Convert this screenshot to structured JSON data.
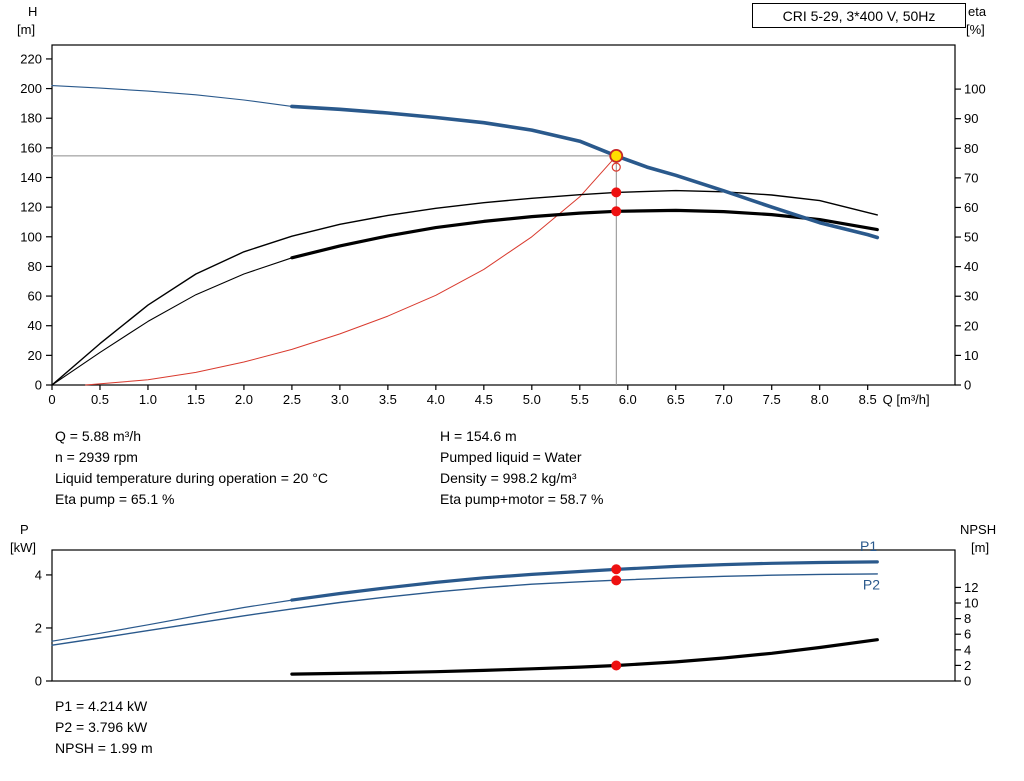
{
  "title_box": "CRI 5-29, 3*400 V, 50Hz",
  "info_top_left": [
    "Q = 5.88 m³/h",
    "n = 2939 rpm",
    "Liquid temperature during operation = 20 °C",
    "Eta pump = 65.1 %"
  ],
  "info_top_right": [
    "H = 154.6 m",
    "Pumped liquid = Water",
    "Density = 998.2 kg/m³",
    "Eta pump+motor = 58.7 %"
  ],
  "info_bottom": [
    "P1 = 4.214 kW",
    "P2 = 3.796 kW",
    "NPSH = 1.99 m"
  ],
  "colors": {
    "curve_blue": "#2A598C",
    "curve_red": "#D93A2E",
    "dot_red": "#EE1111",
    "target_fill": "#FFDE00",
    "target_ring": "#C62828",
    "crosshair": "#8C8C8C",
    "axis": "#000000"
  },
  "chart_data": [
    {
      "type": "line",
      "title": "CRI 5-29, 3*400 V, 50Hz",
      "x_axis": {
        "label": "Q [m³/h]",
        "min": 0,
        "max": 9.41,
        "ticks": [
          0,
          0.5,
          1,
          1.5,
          2,
          2.5,
          3,
          3.5,
          4,
          4.5,
          5,
          5.5,
          6,
          6.5,
          7,
          7.5,
          8,
          8.5
        ],
        "tick_labels": [
          "0",
          "0.5",
          "1.0",
          "1.5",
          "2.0",
          "2.5",
          "3.0",
          "3.5",
          "4.0",
          "4.5",
          "5.0",
          "5.5",
          "6.0",
          "6.5",
          "7.0",
          "7.5",
          "8.0",
          "8.5"
        ]
      },
      "y_left": {
        "title": [
          "H",
          "[m]"
        ],
        "min": 0,
        "max": 229.4,
        "ticks": [
          0,
          20,
          40,
          60,
          80,
          100,
          120,
          140,
          160,
          180,
          200,
          220
        ]
      },
      "y_right": {
        "title": [
          "eta",
          "[%]"
        ],
        "min": 0,
        "max": 114.9,
        "ticks": [
          0,
          10,
          20,
          30,
          40,
          50,
          60,
          70,
          80,
          90,
          100
        ]
      },
      "crosshair": {
        "q": 5.88,
        "h": 154.6
      },
      "series": [
        {
          "name": "system-curve",
          "axis": "left",
          "color": "#D93A2E",
          "parts": [
            {
              "w": 1,
              "pts": [
                [
                  0.35,
                  0
                ],
                [
                  1,
                  3.5
                ],
                [
                  1.5,
                  8.5
                ],
                [
                  2,
                  15.5
                ],
                [
                  2.5,
                  24
                ],
                [
                  3,
                  34.5
                ],
                [
                  3.5,
                  46.5
                ],
                [
                  4,
                  60.5
                ],
                [
                  4.5,
                  78
                ],
                [
                  5,
                  100
                ],
                [
                  5.5,
                  127
                ],
                [
                  5.88,
                  154.6
                ]
              ]
            }
          ]
        },
        {
          "name": "eta-pump-curve",
          "axis": "right",
          "color": "#000000",
          "parts": [
            {
              "w": 1.4,
              "pts": [
                [
                  0,
                  0
                ],
                [
                  0.5,
                  14
                ],
                [
                  1,
                  27
                ],
                [
                  1.5,
                  37.5
                ],
                [
                  2,
                  45
                ],
                [
                  2.5,
                  50.3
                ],
                [
                  3,
                  54.3
                ],
                [
                  3.5,
                  57.3
                ],
                [
                  4,
                  59.7
                ],
                [
                  4.5,
                  61.6
                ],
                [
                  5,
                  63.1
                ],
                [
                  5.5,
                  64.3
                ],
                [
                  5.88,
                  65.1
                ],
                [
                  6.5,
                  65.7
                ],
                [
                  7,
                  65.3
                ],
                [
                  7.5,
                  64.2
                ],
                [
                  8,
                  62.3
                ],
                [
                  8.6,
                  57.5
                ]
              ]
            }
          ]
        },
        {
          "name": "eta-pump-motor-curve",
          "axis": "right",
          "color": "#000000",
          "parts": [
            {
              "w": 1.1,
              "pts": [
                [
                  0,
                  0
                ],
                [
                  0.5,
                  11
                ],
                [
                  1,
                  21.5
                ],
                [
                  1.5,
                  30.5
                ],
                [
                  2,
                  37.5
                ],
                [
                  2.5,
                  43
                ]
              ]
            },
            {
              "w": 3.2,
              "pts": [
                [
                  2.5,
                  43
                ],
                [
                  3,
                  47
                ],
                [
                  3.5,
                  50.4
                ],
                [
                  4,
                  53.2
                ],
                [
                  4.5,
                  55.3
                ],
                [
                  5,
                  56.9
                ],
                [
                  5.5,
                  58.1
                ],
                [
                  5.88,
                  58.7
                ],
                [
                  6.5,
                  59
                ],
                [
                  7,
                  58.6
                ],
                [
                  7.5,
                  57.6
                ],
                [
                  8,
                  55.9
                ],
                [
                  8.6,
                  52.5
                ]
              ]
            }
          ]
        },
        {
          "name": "head-curve",
          "axis": "left",
          "color": "#2A598C",
          "parts": [
            {
              "w": 1.1,
              "pts": [
                [
                  0,
                  202
                ],
                [
                  0.5,
                  200.3
                ],
                [
                  1,
                  198.3
                ],
                [
                  1.5,
                  195.8
                ],
                [
                  2,
                  192.3
                ],
                [
                  2.5,
                  188
                ]
              ]
            },
            {
              "w": 3.6,
              "pts": [
                [
                  2.5,
                  188
                ],
                [
                  3,
                  186
                ],
                [
                  3.5,
                  183.5
                ],
                [
                  4,
                  180.5
                ],
                [
                  4.5,
                  177
                ],
                [
                  5,
                  172
                ],
                [
                  5.5,
                  164.5
                ],
                [
                  5.88,
                  154.6
                ],
                [
                  6.2,
                  147
                ],
                [
                  6.5,
                  141.5
                ],
                [
                  7,
                  131
                ],
                [
                  7.5,
                  120
                ],
                [
                  8,
                  109.5
                ],
                [
                  8.5,
                  101.5
                ],
                [
                  8.6,
                  99.5
                ]
              ]
            }
          ]
        }
      ],
      "markers": [
        {
          "axis": "left",
          "q": 5.88,
          "v": 147,
          "style": "open"
        },
        {
          "axis": "right",
          "q": 5.88,
          "v": 65.1,
          "style": "dot"
        },
        {
          "axis": "right",
          "q": 5.88,
          "v": 58.7,
          "style": "dot"
        },
        {
          "axis": "left",
          "q": 5.88,
          "v": 154.6,
          "style": "target"
        }
      ],
      "labels": []
    },
    {
      "type": "line",
      "title": "",
      "x_axis": {
        "label": "",
        "min": 0,
        "max": 9.41,
        "ticks": [],
        "tick_labels": []
      },
      "y_left": {
        "title": [
          "P",
          "[kW]"
        ],
        "min": 0,
        "max": 4.94,
        "ticks": [
          0,
          2,
          4
        ]
      },
      "y_right": {
        "title": [
          "NPSH",
          "[m]"
        ],
        "min": 0,
        "max": 16.8,
        "ticks": [
          0,
          2,
          4,
          6,
          8,
          10,
          12
        ]
      },
      "series": [
        {
          "name": "p2-curve",
          "axis": "left",
          "color": "#2A598C",
          "parts": [
            {
              "w": 1.4,
              "pts": [
                [
                  0,
                  1.35
                ],
                [
                  0.5,
                  1.62
                ],
                [
                  1,
                  1.9
                ],
                [
                  1.5,
                  2.18
                ],
                [
                  2,
                  2.46
                ],
                [
                  2.5,
                  2.72
                ],
                [
                  3,
                  2.96
                ],
                [
                  3.5,
                  3.17
                ],
                [
                  4,
                  3.36
                ],
                [
                  4.5,
                  3.52
                ],
                [
                  5,
                  3.65
                ],
                [
                  5.5,
                  3.74
                ],
                [
                  5.88,
                  3.8
                ],
                [
                  6.5,
                  3.89
                ],
                [
                  7,
                  3.95
                ],
                [
                  7.5,
                  3.99
                ],
                [
                  8,
                  4.02
                ],
                [
                  8.6,
                  4.04
                ]
              ]
            }
          ]
        },
        {
          "name": "p1-curve",
          "axis": "left",
          "color": "#2A598C",
          "parts": [
            {
              "w": 1.2,
              "pts": [
                [
                  0,
                  1.5
                ],
                [
                  0.5,
                  1.8
                ],
                [
                  1,
                  2.12
                ],
                [
                  1.5,
                  2.45
                ],
                [
                  2,
                  2.77
                ],
                [
                  2.5,
                  3.05
                ]
              ]
            },
            {
              "w": 3.2,
              "pts": [
                [
                  2.5,
                  3.05
                ],
                [
                  3,
                  3.3
                ],
                [
                  3.5,
                  3.52
                ],
                [
                  4,
                  3.72
                ],
                [
                  4.5,
                  3.89
                ],
                [
                  5,
                  4.02
                ],
                [
                  5.5,
                  4.13
                ],
                [
                  5.88,
                  4.21
                ],
                [
                  6.5,
                  4.32
                ],
                [
                  7,
                  4.39
                ],
                [
                  7.5,
                  4.44
                ],
                [
                  8,
                  4.47
                ],
                [
                  8.6,
                  4.49
                ]
              ]
            }
          ]
        },
        {
          "name": "npsh-curve",
          "axis": "right",
          "color": "#000000",
          "parts": [
            {
              "w": 3.2,
              "pts": [
                [
                  2.5,
                  0.88
                ],
                [
                  3,
                  0.97
                ],
                [
                  3.5,
                  1.07
                ],
                [
                  4,
                  1.19
                ],
                [
                  4.5,
                  1.36
                ],
                [
                  5,
                  1.56
                ],
                [
                  5.5,
                  1.78
                ],
                [
                  5.88,
                  1.99
                ],
                [
                  6.5,
                  2.45
                ],
                [
                  7,
                  2.95
                ],
                [
                  7.5,
                  3.55
                ],
                [
                  8,
                  4.3
                ],
                [
                  8.6,
                  5.3
                ]
              ]
            }
          ]
        }
      ],
      "markers": [
        {
          "axis": "left",
          "q": 5.88,
          "v": 4.214,
          "style": "dot"
        },
        {
          "axis": "left",
          "q": 5.88,
          "v": 3.796,
          "style": "dot"
        },
        {
          "axis": "right",
          "q": 5.88,
          "v": 1.99,
          "style": "dot"
        }
      ],
      "labels": [
        {
          "text": "P1",
          "axis": "left",
          "q": 8.42,
          "v": 4.9,
          "color": "#2A598C"
        },
        {
          "text": "P2",
          "axis": "left",
          "q": 8.45,
          "v": 3.45,
          "color": "#2A598C"
        }
      ]
    }
  ]
}
